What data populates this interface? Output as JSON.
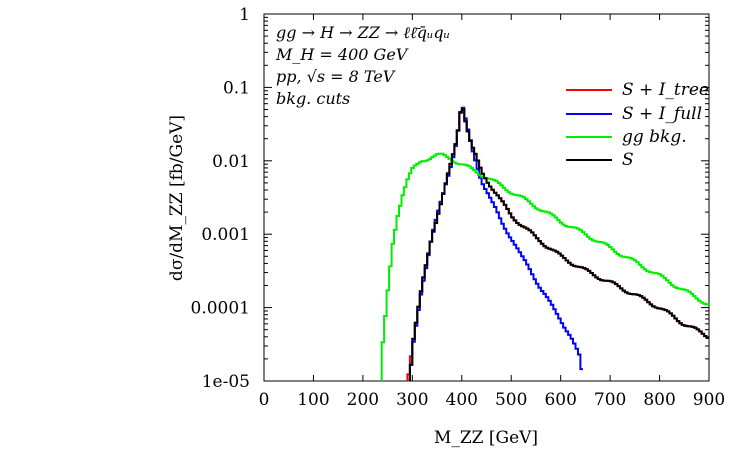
{
  "chart_data": {
    "type": "line",
    "title": "",
    "xlabel": "M_ZZ [GeV]",
    "ylabel": "dσ/dM_ZZ [fb/GeV]",
    "xlim": [
      0,
      900
    ],
    "ylim": [
      1e-05,
      1
    ],
    "yscale": "log",
    "grid": false,
    "legend_position": "top-right",
    "x_ticks": [
      "0",
      "100",
      "200",
      "300",
      "400",
      "500",
      "600",
      "700",
      "800",
      "900"
    ],
    "y_ticks": [
      "1e-05",
      "0.0001",
      "0.001",
      "0.01",
      "0.1",
      "1"
    ],
    "annotations": [
      "gg → H → ZZ → ℓℓ̄q̄ᵤqᵤ",
      "M_H = 400 GeV",
      "pp, √s = 8 TeV",
      "bkg. cuts"
    ],
    "series": [
      {
        "name": "S + I_tree",
        "color": "#ff0000",
        "x": [
          290,
          300,
          320,
          340,
          360,
          380,
          390,
          400,
          410,
          420,
          440,
          460,
          480,
          500,
          550,
          600,
          650,
          700,
          750,
          800,
          850,
          900
        ],
        "y": [
          1e-05,
          3e-05,
          0.0002,
          0.001,
          0.003,
          0.01,
          0.02,
          0.063,
          0.03,
          0.016,
          0.007,
          0.0045,
          0.0028,
          0.0018,
          0.0009,
          0.0005,
          0.00032,
          0.00022,
          0.00015,
          0.0001,
          6e-05,
          4e-05
        ]
      },
      {
        "name": "S + I_full",
        "color": "#0000ff",
        "x": [
          295,
          300,
          320,
          340,
          360,
          380,
          390,
          400,
          410,
          420,
          440,
          460,
          480,
          500,
          520,
          540,
          560,
          580,
          600,
          620,
          640,
          645
        ],
        "y": [
          1e-05,
          2.5e-05,
          0.0002,
          0.001,
          0.003,
          0.01,
          0.02,
          0.061,
          0.03,
          0.015,
          0.0055,
          0.0028,
          0.0015,
          0.0009,
          0.0005,
          0.00032,
          0.00018,
          0.00011,
          7e-05,
          4e-05,
          2e-05,
          1e-05
        ]
      },
      {
        "name": "gg bkg.",
        "color": "#00ee00",
        "x": [
          238,
          240,
          250,
          260,
          270,
          280,
          290,
          300,
          320,
          340,
          350,
          360,
          380,
          400,
          450,
          500,
          550,
          600,
          650,
          700,
          750,
          800,
          850,
          900
        ],
        "y": [
          1e-05,
          3e-05,
          0.00015,
          0.0007,
          0.0018,
          0.0035,
          0.0055,
          0.0075,
          0.01,
          0.0115,
          0.012,
          0.0118,
          0.0105,
          0.009,
          0.006,
          0.0038,
          0.0024,
          0.0015,
          0.001,
          0.00065,
          0.00042,
          0.00027,
          0.00017,
          0.00011
        ]
      },
      {
        "name": "S",
        "color": "#000000",
        "x": [
          295,
          300,
          320,
          340,
          360,
          380,
          390,
          400,
          410,
          420,
          440,
          460,
          480,
          500,
          550,
          600,
          650,
          700,
          750,
          800,
          850,
          900
        ],
        "y": [
          1e-05,
          3e-05,
          0.0002,
          0.001,
          0.003,
          0.01,
          0.02,
          0.065,
          0.03,
          0.016,
          0.007,
          0.0045,
          0.0028,
          0.0018,
          0.0009,
          0.0005,
          0.00032,
          0.00022,
          0.00015,
          0.0001,
          6e-05,
          4e-05
        ]
      }
    ]
  }
}
